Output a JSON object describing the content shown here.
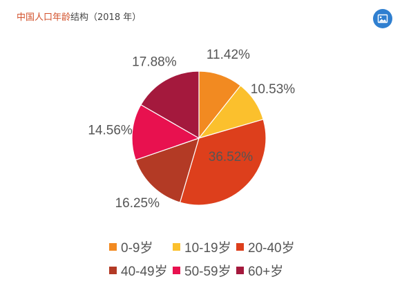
{
  "page": {
    "title_accent": "中国人口年龄",
    "title_rest": "结构（2018 年）"
  },
  "toolbar": {
    "image_button_icon": "image-icon"
  },
  "chart_data": {
    "type": "pie",
    "title": "",
    "labels": [
      "0-9岁",
      "10-19岁",
      "20-40岁",
      "40-49岁",
      "50-59岁",
      "60+岁"
    ],
    "values": [
      11.42,
      10.53,
      36.52,
      16.25,
      14.56,
      17.88
    ],
    "value_labels": [
      "11.42%",
      "10.53%",
      "36.52%",
      "16.25%",
      "14.56%",
      "17.88%"
    ],
    "colors": [
      "#f28a21",
      "#fbc02d",
      "#dd3f1c",
      "#b33a25",
      "#e8114f",
      "#a4193d"
    ],
    "start_angle": "12 o'clock",
    "direction": "clockwise",
    "legend_position": "bottom"
  }
}
